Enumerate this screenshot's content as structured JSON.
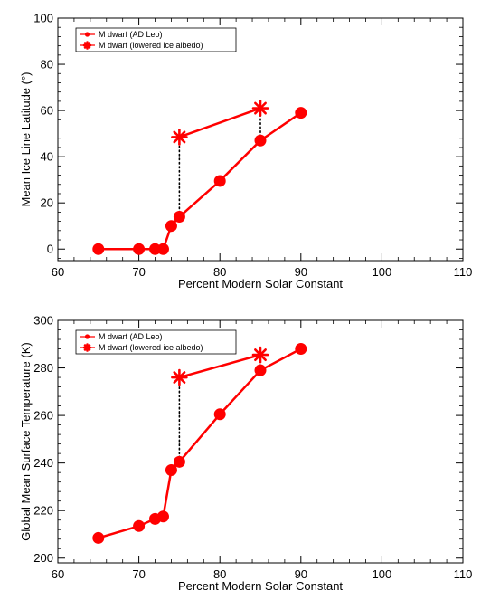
{
  "chart_data": [
    {
      "type": "line",
      "xlabel": "Percent Modern Solar Constant",
      "ylabel": "Mean Ice Line Latitude (°)",
      "xlim": [
        60,
        110
      ],
      "ylim": [
        -5,
        100
      ],
      "xticks": [
        "60",
        "70",
        "80",
        "90",
        "100",
        "110"
      ],
      "yticks": [
        "0",
        "20",
        "40",
        "60",
        "80",
        "100"
      ],
      "grid": false,
      "legend_position": "top-left",
      "series": [
        {
          "name": "M dwarf (AD Leo)",
          "marker": "circle",
          "x": [
            65,
            70,
            72,
            73,
            74,
            75,
            80,
            85,
            90
          ],
          "y": [
            0,
            0,
            0,
            0,
            10,
            14,
            29.5,
            47,
            59
          ]
        },
        {
          "name": "M dwarf (lowered ice albedo)",
          "marker": "asterisk",
          "x": [
            75,
            85
          ],
          "y": [
            48.5,
            61
          ]
        }
      ],
      "connectors": [
        {
          "x": 75,
          "y_from": 14,
          "y_to": 48.5
        },
        {
          "x": 85,
          "y_from": 47,
          "y_to": 61
        }
      ]
    },
    {
      "type": "line",
      "xlabel": "Percent Modern Solar Constant",
      "ylabel": "Global Mean Surface Temperature (K)",
      "xlim": [
        60,
        110
      ],
      "ylim": [
        198,
        300
      ],
      "xticks": [
        "60",
        "70",
        "80",
        "90",
        "100",
        "110"
      ],
      "yticks": [
        "200",
        "220",
        "240",
        "260",
        "280",
        "300"
      ],
      "grid": false,
      "legend_position": "top-left",
      "series": [
        {
          "name": "M dwarf (AD Leo)",
          "marker": "circle",
          "x": [
            65,
            70,
            72,
            73,
            74,
            75,
            80,
            85,
            90
          ],
          "y": [
            208.5,
            213.5,
            216.5,
            217.5,
            237,
            240.5,
            260.5,
            279,
            288
          ]
        },
        {
          "name": "M dwarf (lowered ice albedo)",
          "marker": "asterisk",
          "x": [
            75,
            85
          ],
          "y": [
            276,
            285.5
          ]
        }
      ],
      "connectors": [
        {
          "x": 75,
          "y_from": 240.5,
          "y_to": 276
        },
        {
          "x": 85,
          "y_from": 279,
          "y_to": 285.5
        }
      ]
    }
  ],
  "colors": {
    "series": "#ff0000",
    "axes": "#000000",
    "connector": "#000000"
  }
}
